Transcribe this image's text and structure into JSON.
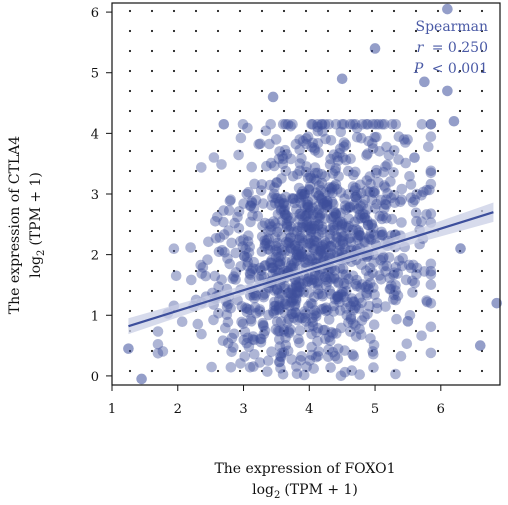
{
  "chart_data": {
    "type": "scatter",
    "title": "",
    "xlabel": "The expression of FOXO1",
    "xlabel_unit": "(TPM + 1)",
    "xlabel_log": "log",
    "xlabel_log_sub": "2",
    "ylabel": "The expression of CTLA4",
    "ylabel_unit": "(TPM + 1)",
    "ylabel_log": "log",
    "ylabel_log_sub": "2",
    "xlim": [
      1,
      6.9
    ],
    "ylim": [
      -0.15,
      6.15
    ],
    "xticks": [
      1,
      2,
      3,
      4,
      5,
      6
    ],
    "yticks": [
      0,
      1,
      2,
      3,
      4,
      5,
      6
    ],
    "grid": "dotted",
    "point_color": "#3d4f9c",
    "fit_line": {
      "x": [
        1.25,
        6.8
      ],
      "y": [
        0.82,
        2.7
      ],
      "color": "#3d4f9c"
    },
    "annotation": {
      "method": "Spearman",
      "r_label": "r",
      "r_value": "= 0.250",
      "p_label": "P",
      "p_value": "< 0.001"
    },
    "points_generated": {
      "count": 1100,
      "x_center": 4.1,
      "x_spread": 0.85,
      "y_intercept": 0.8,
      "y_slope": 0.3,
      "y_spread": 1.05,
      "seed": 17
    },
    "outlier_points": [
      {
        "x": 6.1,
        "y": 6.05
      },
      {
        "x": 5.0,
        "y": 5.4
      },
      {
        "x": 5.75,
        "y": 4.85
      },
      {
        "x": 6.1,
        "y": 4.7
      },
      {
        "x": 4.5,
        "y": 4.9
      },
      {
        "x": 2.7,
        "y": 4.15
      },
      {
        "x": 3.45,
        "y": 4.6
      },
      {
        "x": 6.2,
        "y": 4.2
      },
      {
        "x": 1.25,
        "y": 0.45
      },
      {
        "x": 6.85,
        "y": 1.2
      },
      {
        "x": 6.6,
        "y": 0.5
      },
      {
        "x": 5.5,
        "y": 0.9
      },
      {
        "x": 1.45,
        "y": -0.05
      },
      {
        "x": 6.3,
        "y": 2.1
      },
      {
        "x": 5.6,
        "y": 3.6
      }
    ]
  }
}
